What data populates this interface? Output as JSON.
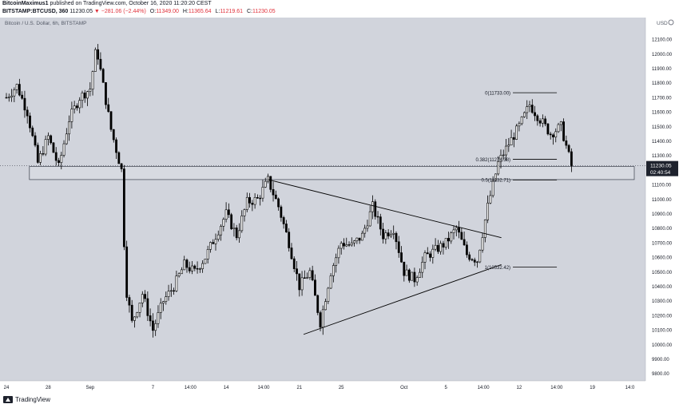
{
  "header": {
    "author": "BitcoinMaximus1",
    "published_text": "published on TradingView.com, October 16, 2020 11:20:20 CEST",
    "symbol_line": "BITSTAMP:BTCUSD, 360",
    "last_price": "11230.05",
    "change_text": "▼ −281.06 (−2.44%)",
    "ohlc": [
      {
        "label": "O:",
        "value": "11349.00"
      },
      {
        "label": "H:",
        "value": "11365.64"
      },
      {
        "label": "L:",
        "value": "11219.61"
      },
      {
        "label": "C:",
        "value": "11230.05"
      }
    ]
  },
  "footer": {
    "brand": "TradingView"
  },
  "colors": {
    "background": "#d1d4dc",
    "candle": "#000000",
    "price_label_bg": "#1e222d",
    "header_change": "#e0313b"
  },
  "chart_data": {
    "type": "candlestick",
    "title": "Bitcoin / U.S. Dollar, 6h, BITSTAMP",
    "y_unit_label": "USD",
    "ylim": [
      9750,
      12250
    ],
    "y_ticks": [
      "12100.00",
      "12000.00",
      "11900.00",
      "11800.00",
      "11700.00",
      "11600.00",
      "11500.00",
      "11400.00",
      "11300.00",
      "11200.00",
      "11100.00",
      "11000.00",
      "10900.00",
      "10800.00",
      "10700.00",
      "10600.00",
      "10500.00",
      "10400.00",
      "10300.00",
      "10200.00",
      "10100.00",
      "10000.00",
      "9900.00",
      "9800.00"
    ],
    "x_ticks": [
      {
        "label": "24",
        "day": 0
      },
      {
        "label": "28",
        "day": 4
      },
      {
        "label": "Sep",
        "day": 8
      },
      {
        "label": "7",
        "day": 14
      },
      {
        "label": "14:00",
        "day": 17.58
      },
      {
        "label": "14",
        "day": 21
      },
      {
        "label": "14:00",
        "day": 24.58
      },
      {
        "label": "21",
        "day": 28
      },
      {
        "label": "25",
        "day": 32
      },
      {
        "label": "Oct",
        "day": 38
      },
      {
        "label": "5",
        "day": 42
      },
      {
        "label": "14:00",
        "day": 45.58
      },
      {
        "label": "12",
        "day": 49
      },
      {
        "label": "14:00",
        "day": 52.58
      },
      {
        "label": "19",
        "day": 56
      },
      {
        "label": "14:0",
        "day": 59.58
      }
    ],
    "close_path": [
      [
        0,
        11700
      ],
      [
        1,
        11780
      ],
      [
        2,
        11600
      ],
      [
        3,
        11250
      ],
      [
        4,
        11430
      ],
      [
        5,
        11220
      ],
      [
        6,
        11550
      ],
      [
        7,
        11700
      ],
      [
        8,
        11760
      ],
      [
        8.6,
        12050
      ],
      [
        9.2,
        11800
      ],
      [
        10,
        11480
      ],
      [
        11,
        11200
      ],
      [
        11.4,
        10400
      ],
      [
        12,
        10150
      ],
      [
        13,
        10350
      ],
      [
        14,
        10100
      ],
      [
        15,
        10300
      ],
      [
        16,
        10400
      ],
      [
        17,
        10550
      ],
      [
        18,
        10500
      ],
      [
        19,
        10600
      ],
      [
        20,
        10750
      ],
      [
        21,
        10900
      ],
      [
        22,
        10750
      ],
      [
        23,
        10980
      ],
      [
        24,
        11000
      ],
      [
        25,
        11130
      ],
      [
        26,
        10950
      ],
      [
        27,
        10700
      ],
      [
        28,
        10400
      ],
      [
        29,
        10500
      ],
      [
        30,
        10150
      ],
      [
        31,
        10500
      ],
      [
        32,
        10700
      ],
      [
        33,
        10680
      ],
      [
        34,
        10750
      ],
      [
        35,
        10950
      ],
      [
        36,
        10750
      ],
      [
        37,
        10800
      ],
      [
        38,
        10500
      ],
      [
        39,
        10450
      ],
      [
        40,
        10600
      ],
      [
        41,
        10650
      ],
      [
        42,
        10700
      ],
      [
        43,
        10800
      ],
      [
        44,
        10620
      ],
      [
        45,
        10580
      ],
      [
        46,
        10950
      ],
      [
        47,
        11250
      ],
      [
        48,
        11380
      ],
      [
        49,
        11500
      ],
      [
        50,
        11650
      ],
      [
        51,
        11550
      ],
      [
        52,
        11450
      ],
      [
        53,
        11500
      ],
      [
        54,
        11230
      ]
    ],
    "support_zone": {
      "low": 11135,
      "high": 11225,
      "from_day": 2.2,
      "to_day": 60
    },
    "triangle": {
      "upper": {
        "from": [
          25,
          11135
        ],
        "to": [
          47.3,
          10735
        ]
      },
      "lower": {
        "from": [
          28.4,
          10070
        ],
        "to": [
          47.3,
          10550
        ]
      }
    },
    "fibonacci": [
      {
        "label": "0(11733.00)",
        "price": 11733.0
      },
      {
        "label": "0.382(11274.38)",
        "price": 11274.38
      },
      {
        "label": "0.5(11132.71)",
        "price": 11132.71
      },
      {
        "label": "1(10532.42)",
        "price": 10532.42
      }
    ],
    "fib_line_from_day": 48.4,
    "fib_line_to_day": 52.6,
    "price_label": {
      "price": 11230.05,
      "text": "11230.05",
      "countdown": "02:40:54"
    }
  }
}
